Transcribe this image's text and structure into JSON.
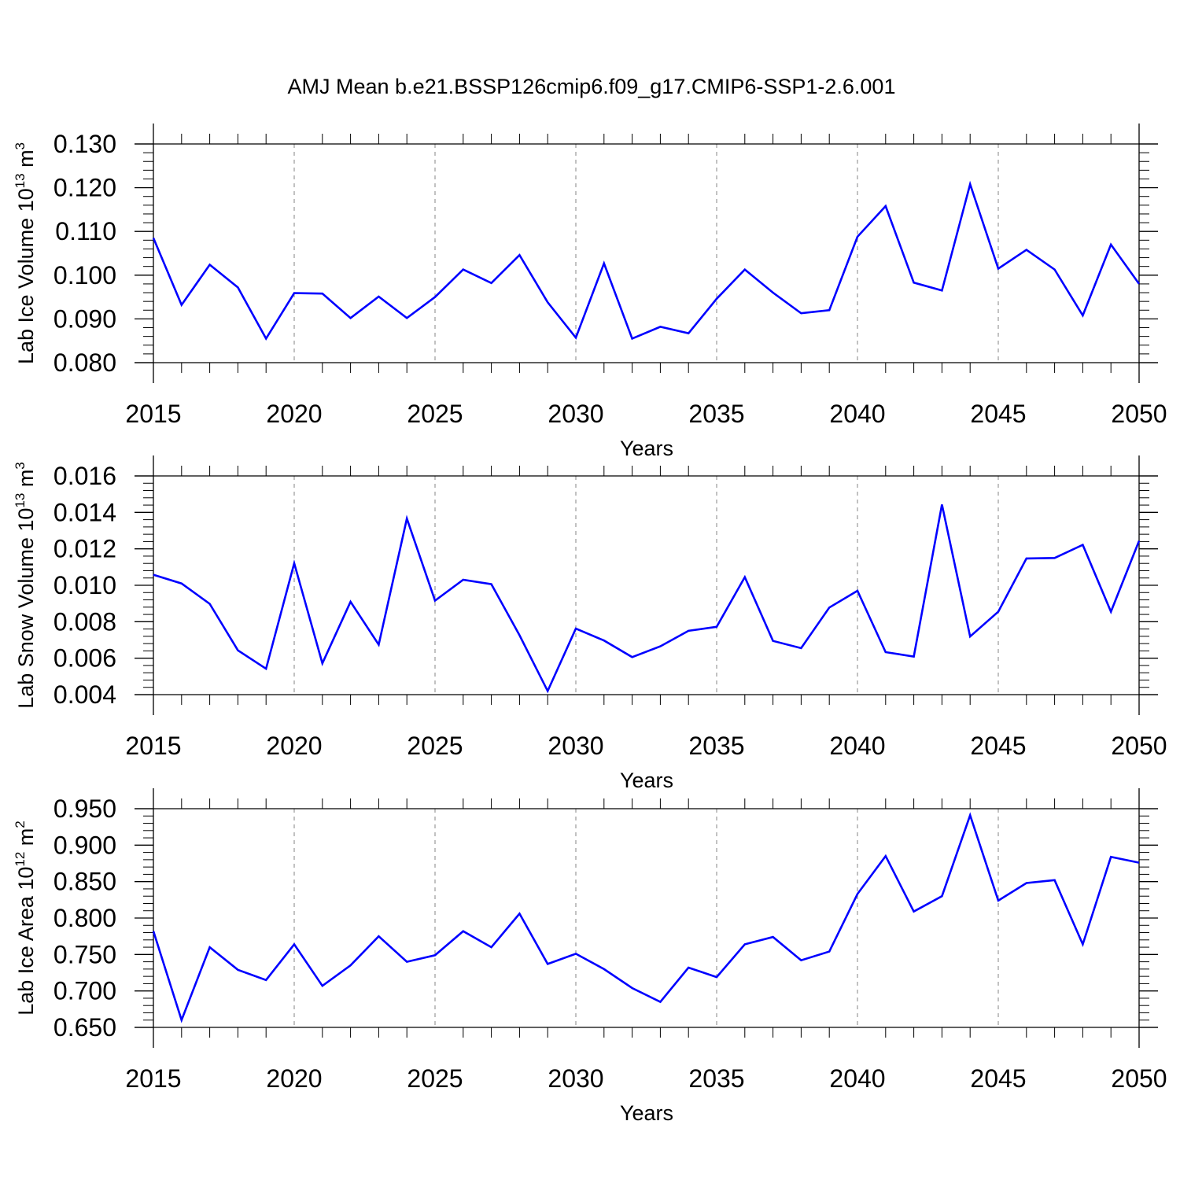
{
  "title": "AMJ Mean b.e21.BSSP126cmip6.f09_g17.CMIP6-SSP1-2.6.001",
  "colors": {
    "line": "#0000ff",
    "axis": "#000000",
    "grid": "#999999"
  },
  "chart_data": [
    {
      "type": "line",
      "xlabel": "Years",
      "ylabel": {
        "text": "Lab Ice Volume 10",
        "exp": "13",
        "unit": " m",
        "unit_exp": "3"
      },
      "xlim": [
        2015,
        2050
      ],
      "ylim": [
        0.08,
        0.13
      ],
      "yticks": [
        "0.080",
        "0.090",
        "0.100",
        "0.110",
        "0.120",
        "0.130"
      ],
      "xticks": [
        "2015",
        "2020",
        "2025",
        "2030",
        "2035",
        "2040",
        "2045",
        "2050"
      ],
      "grid": "vertical dashed at major x ticks",
      "x": [
        2015,
        2016,
        2017,
        2018,
        2019,
        2020,
        2021,
        2022,
        2023,
        2024,
        2025,
        2026,
        2027,
        2028,
        2029,
        2030,
        2031,
        2032,
        2033,
        2034,
        2035,
        2036,
        2037,
        2038,
        2039,
        2040,
        2041,
        2042,
        2043,
        2044,
        2045,
        2046,
        2047,
        2048,
        2049,
        2050
      ],
      "values": [
        0.1085,
        0.0932,
        0.1024,
        0.0972,
        0.0855,
        0.0959,
        0.0958,
        0.0902,
        0.0951,
        0.0902,
        0.095,
        0.1013,
        0.0982,
        0.1046,
        0.0938,
        0.0857,
        0.1027,
        0.0855,
        0.0882,
        0.0867,
        0.0946,
        0.1013,
        0.096,
        0.0913,
        0.092,
        0.1088,
        0.1158,
        0.0983,
        0.0965,
        0.1208,
        0.1015,
        0.1058,
        0.1013,
        0.0908,
        0.107,
        0.098
      ]
    },
    {
      "type": "line",
      "xlabel": "Years",
      "ylabel": {
        "text": "Lab Snow Volume 10",
        "exp": "13",
        "unit": " m",
        "unit_exp": "3"
      },
      "xlim": [
        2015,
        2050
      ],
      "ylim": [
        0.004,
        0.016
      ],
      "yticks": [
        "0.004",
        "0.006",
        "0.008",
        "0.010",
        "0.012",
        "0.014",
        "0.016"
      ],
      "xticks": [
        "2015",
        "2020",
        "2025",
        "2030",
        "2035",
        "2040",
        "2045",
        "2050"
      ],
      "grid": "vertical dashed at major x ticks",
      "x": [
        2015,
        2016,
        2017,
        2018,
        2019,
        2020,
        2021,
        2022,
        2023,
        2024,
        2025,
        2026,
        2027,
        2028,
        2029,
        2030,
        2031,
        2032,
        2033,
        2034,
        2035,
        2036,
        2037,
        2038,
        2039,
        2040,
        2041,
        2042,
        2043,
        2044,
        2045,
        2046,
        2047,
        2048,
        2049,
        2050
      ],
      "values": [
        0.01058,
        0.0101,
        0.00898,
        0.00643,
        0.00542,
        0.01121,
        0.00572,
        0.0091,
        0.00674,
        0.01366,
        0.00916,
        0.0103,
        0.01006,
        0.00726,
        0.0042,
        0.00762,
        0.00697,
        0.00606,
        0.00665,
        0.0075,
        0.00772,
        0.01045,
        0.00695,
        0.00655,
        0.00878,
        0.0097,
        0.00633,
        0.00609,
        0.01443,
        0.00719,
        0.00855,
        0.01147,
        0.0115,
        0.01222,
        0.00855,
        0.01244
      ]
    },
    {
      "type": "line",
      "xlabel": "Years",
      "ylabel": {
        "text": "Lab Ice Area 10",
        "exp": "12",
        "unit": " m",
        "unit_exp": "2"
      },
      "xlim": [
        2015,
        2050
      ],
      "ylim": [
        0.65,
        0.95
      ],
      "yticks": [
        "0.650",
        "0.700",
        "0.750",
        "0.800",
        "0.850",
        "0.900",
        "0.950"
      ],
      "xticks": [
        "2015",
        "2020",
        "2025",
        "2030",
        "2035",
        "2040",
        "2045",
        "2050"
      ],
      "grid": "vertical dashed at major x ticks",
      "x": [
        2015,
        2016,
        2017,
        2018,
        2019,
        2020,
        2021,
        2022,
        2023,
        2024,
        2025,
        2026,
        2027,
        2028,
        2029,
        2030,
        2031,
        2032,
        2033,
        2034,
        2035,
        2036,
        2037,
        2038,
        2039,
        2040,
        2041,
        2042,
        2043,
        2044,
        2045,
        2046,
        2047,
        2048,
        2049,
        2050
      ],
      "values": [
        0.782,
        0.66,
        0.76,
        0.729,
        0.715,
        0.764,
        0.707,
        0.735,
        0.775,
        0.74,
        0.749,
        0.782,
        0.76,
        0.806,
        0.737,
        0.751,
        0.73,
        0.704,
        0.685,
        0.732,
        0.719,
        0.764,
        0.774,
        0.742,
        0.754,
        0.833,
        0.885,
        0.809,
        0.83,
        0.941,
        0.824,
        0.848,
        0.852,
        0.764,
        0.884,
        0.876
      ]
    }
  ]
}
